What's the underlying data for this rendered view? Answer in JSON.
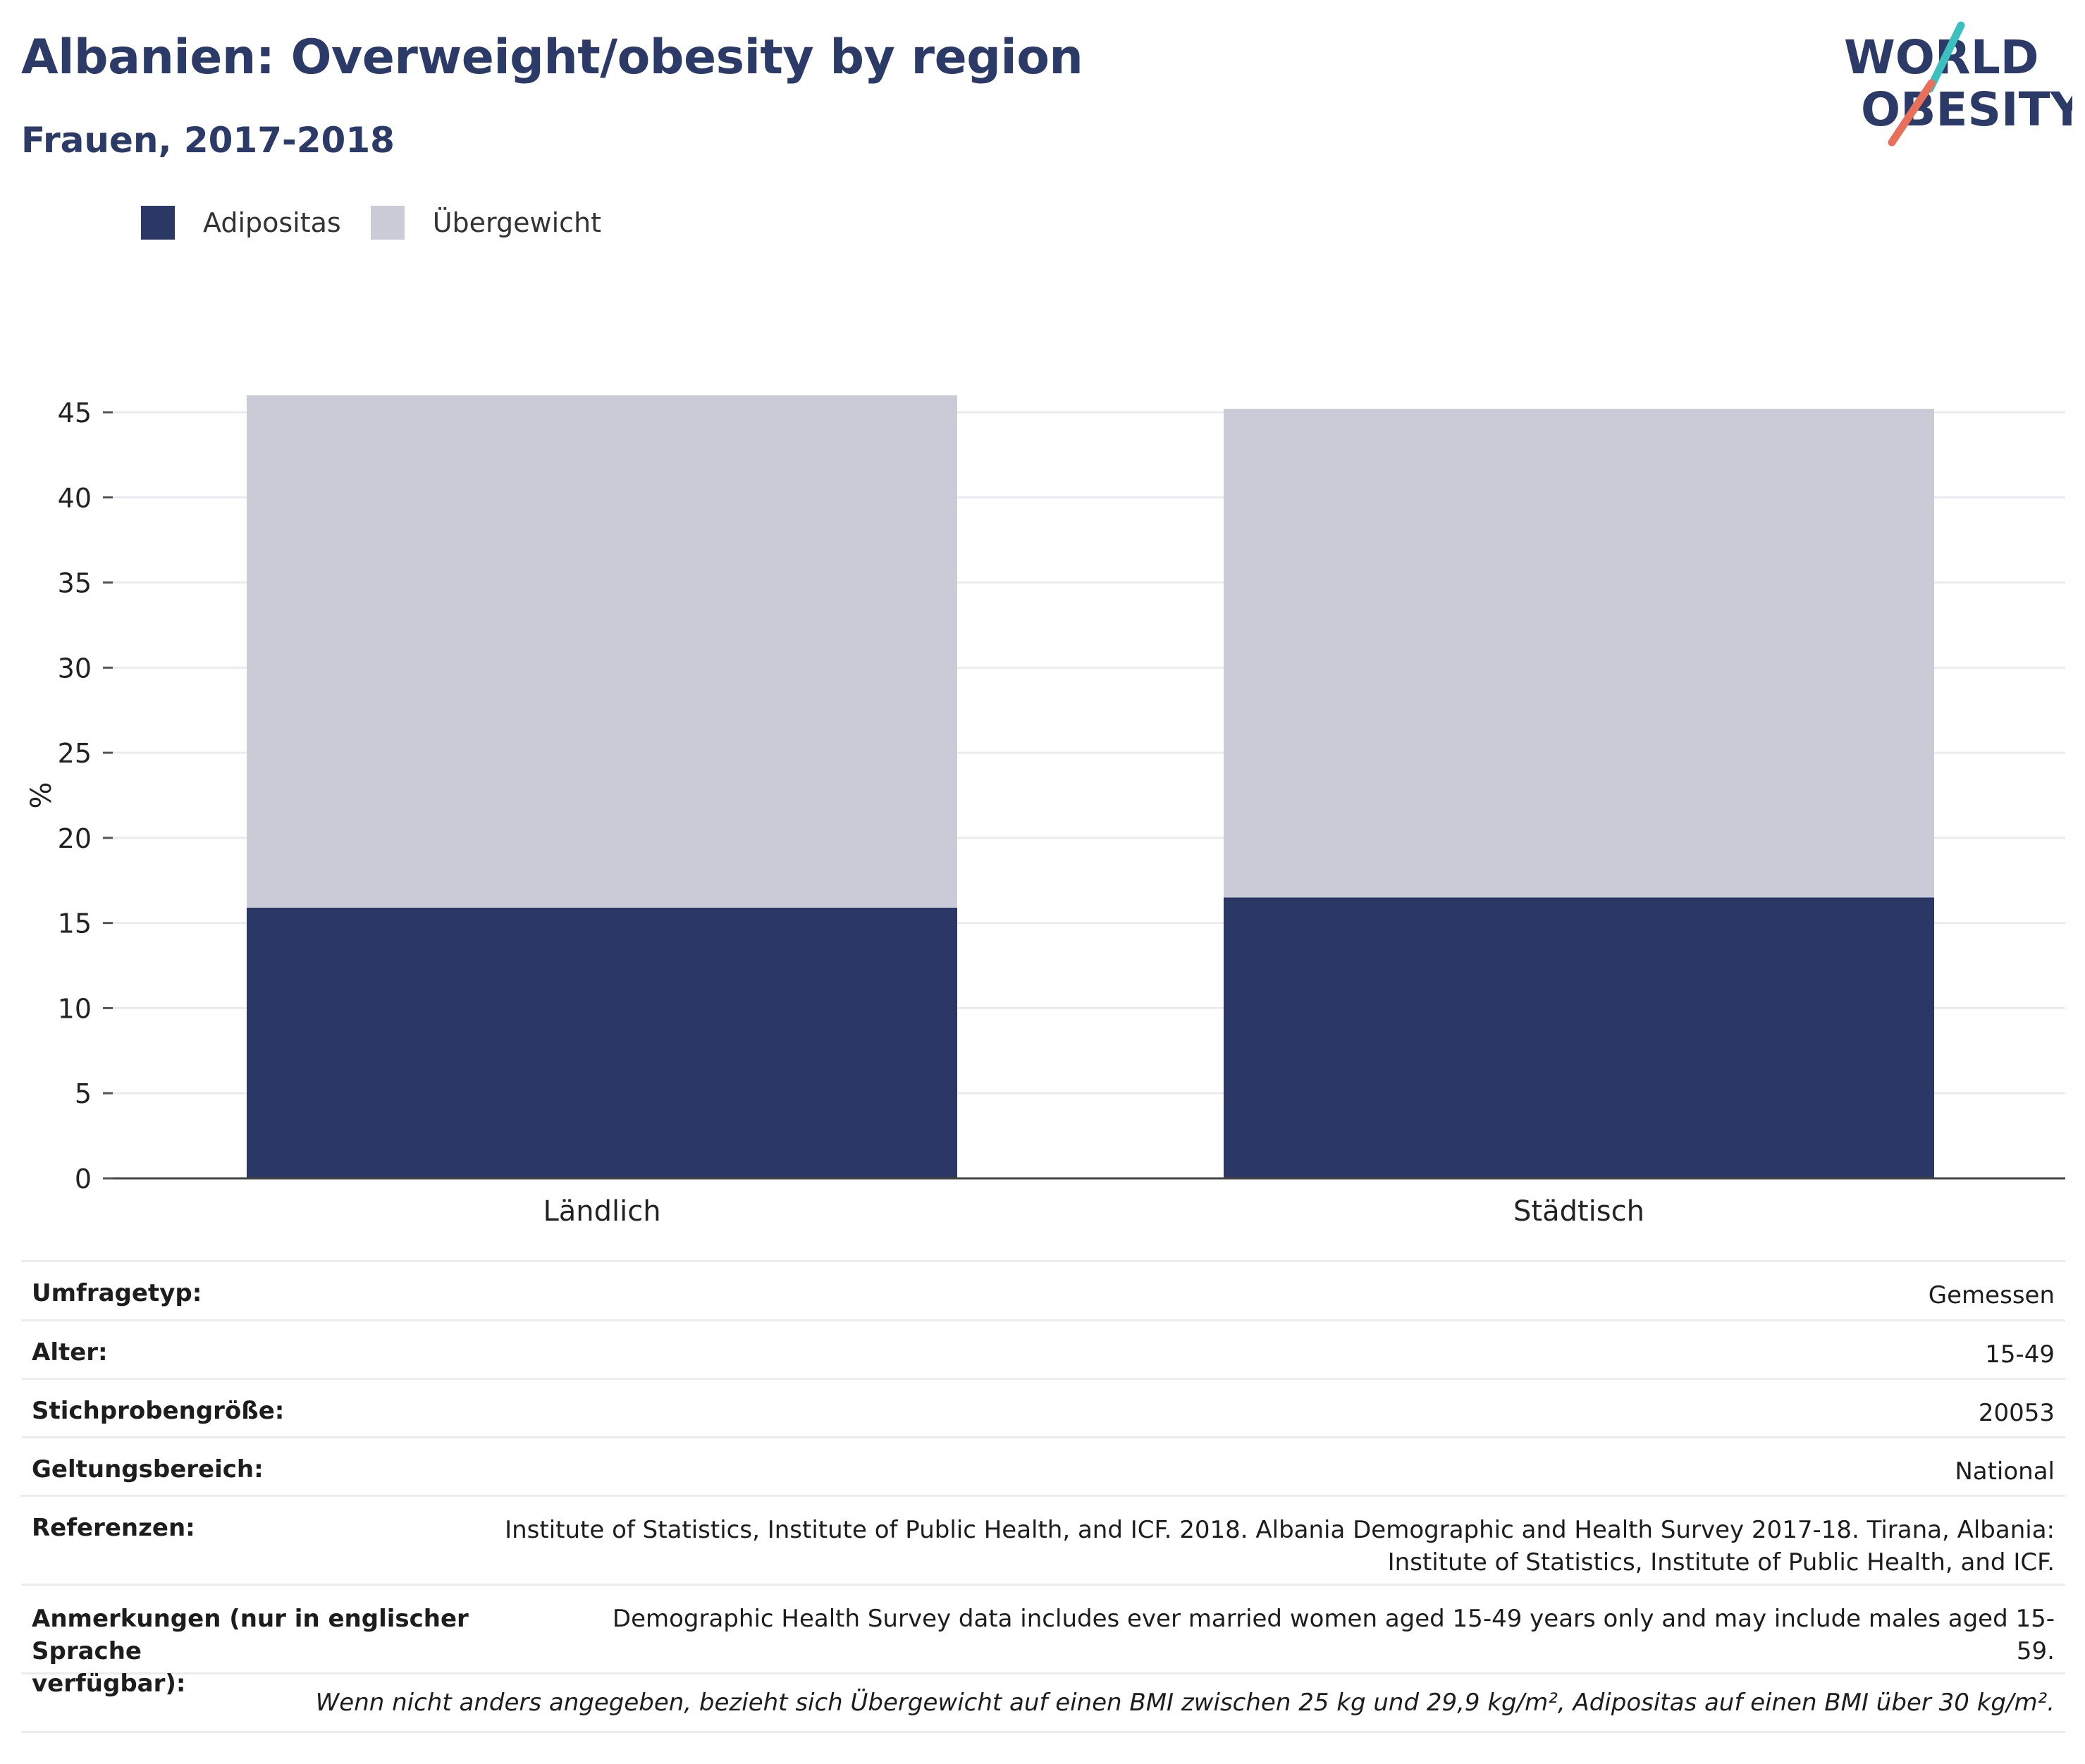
{
  "title": "Albanien: Overweight/obesity by region",
  "subtitle": "Frauen, 2017-2018",
  "logo": {
    "line1": "WORLD",
    "line2": "OBESITY",
    "accent_teal": "#3cbfbf",
    "accent_red": "#e8705a"
  },
  "colors": {
    "obesity": "#2b3764",
    "overweight": "#c9cbd7",
    "title": "#2b3a67"
  },
  "legend": [
    {
      "label": "Adipositas",
      "color": "#2b3764"
    },
    {
      "label": "Übergewicht",
      "color": "#c9cbd7"
    }
  ],
  "chart_data": {
    "type": "bar",
    "stacked": true,
    "categories": [
      "Ländlich",
      "Städtisch"
    ],
    "series": [
      {
        "name": "Adipositas",
        "values": [
          15.9,
          16.5
        ]
      },
      {
        "name": "Übergewicht",
        "values": [
          30.1,
          28.7
        ]
      }
    ],
    "ylabel": "%",
    "ylim": [
      0,
      45
    ],
    "yticks": [
      0,
      5,
      10,
      15,
      20,
      25,
      30,
      35,
      40,
      45
    ],
    "grid": true
  },
  "info": {
    "survey_type": {
      "label": "Umfragetyp:",
      "value": "Gemessen"
    },
    "age": {
      "label": "Alter:",
      "value": "15-49"
    },
    "sample_size": {
      "label": "Stichprobengröße:",
      "value": "20053"
    },
    "scope": {
      "label": "Geltungsbereich:",
      "value": "National"
    },
    "references": {
      "label": "Referenzen:",
      "value_line1": "Institute of Statistics, Institute of Public Health, and ICF. 2018. Albania Demographic and Health Survey 2017-18. Tirana, Albania:",
      "value_line2": "Institute of Statistics, Institute of Public Health, and ICF."
    },
    "notes": {
      "label_line1": "Anmerkungen (nur in englischer Sprache",
      "label_line2": "verfügbar):",
      "value": "Demographic Health Survey data includes ever married women aged 15-49 years only and may include males aged 15-59."
    },
    "footnote": "Wenn nicht anders angegeben, bezieht sich Übergewicht auf einen BMI zwischen 25 kg und 29,9 kg/m², Adipositas auf einen BMI über 30 kg/m²."
  }
}
